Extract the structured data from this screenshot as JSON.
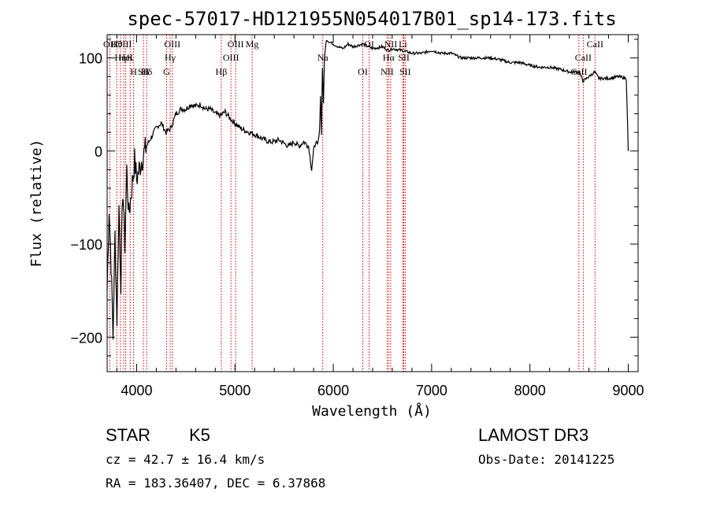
{
  "chart_data": {
    "type": "line",
    "title": "spec-57017-HD121955N054017B01_sp14-173.fits",
    "xlabel": "Wavelength (Å)",
    "ylabel": "Flux (relative)",
    "xlim": [
      3700,
      9100
    ],
    "ylim": [
      -237,
      125
    ],
    "xticks": [
      4000,
      5000,
      6000,
      7000,
      8000,
      9000
    ],
    "xtick_labels": [
      "4000",
      "5000",
      "6000",
      "7000",
      "8000",
      "9000"
    ],
    "yticks": [
      -200,
      -100,
      0,
      100
    ],
    "ytick_labels": [
      "−200",
      "−100",
      "0",
      "100"
    ],
    "grid": false,
    "series": [
      {
        "x": [
          3700,
          3720,
          3740,
          3760,
          3780,
          3800,
          3820,
          3840,
          3860,
          3880,
          3900,
          3920,
          3950,
          3980,
          4000,
          4050,
          4100,
          4150,
          4200,
          4250,
          4300,
          4350,
          4400,
          4450,
          4500,
          4550,
          4600,
          4650,
          4700,
          4750,
          4800,
          4850,
          4900,
          4950,
          5000,
          5050,
          5100,
          5150,
          5200,
          5250,
          5300,
          5350,
          5400,
          5450,
          5500,
          5550,
          5600,
          5650,
          5700,
          5750,
          5780,
          5800,
          5820,
          5840,
          5860,
          5870,
          5880,
          5890,
          5900,
          5910,
          5930,
          5950,
          6000,
          6050,
          6100,
          6150,
          6200,
          6300,
          6400,
          6500,
          6560,
          6600,
          6700,
          6800,
          6900,
          7000,
          7100,
          7200,
          7300,
          7400,
          7500,
          7600,
          7700,
          7800,
          7900,
          8000,
          8100,
          8200,
          8300,
          8400,
          8500,
          8540,
          8600,
          8660,
          8700,
          8800,
          8900,
          8980,
          9000
        ],
        "y": [
          -150,
          -60,
          -120,
          -200,
          -90,
          -180,
          -60,
          -140,
          -40,
          -100,
          -20,
          -70,
          -40,
          -10,
          -30,
          -10,
          5,
          15,
          25,
          30,
          20,
          25,
          40,
          45,
          45,
          50,
          48,
          50,
          45,
          45,
          40,
          38,
          42,
          35,
          30,
          25,
          22,
          20,
          18,
          15,
          12,
          10,
          10,
          12,
          8,
          5,
          10,
          5,
          10,
          5,
          -20,
          0,
          10,
          5,
          20,
          60,
          20,
          90,
          50,
          100,
          120,
          118,
          115,
          112,
          110,
          115,
          112,
          115,
          110,
          112,
          108,
          110,
          108,
          105,
          105,
          108,
          105,
          105,
          100,
          100,
          100,
          100,
          98,
          95,
          95,
          92,
          90,
          90,
          88,
          85,
          85,
          75,
          80,
          85,
          78,
          78,
          80,
          78,
          0
        ]
      }
    ],
    "lines": [
      {
        "name": "Hθ",
        "x": 3798
      },
      {
        "name": "K",
        "x": 3934
      },
      {
        "name": "Hδ",
        "x": 4102
      },
      {
        "name": "OII",
        "x": 3727
      },
      {
        "name": "HeI",
        "x": 3889
      },
      {
        "name": "SII",
        "x": 4070
      },
      {
        "name": "OIII",
        "x": 3869
      },
      {
        "name": "Hη",
        "x": 3835
      },
      {
        "name": "H",
        "x": 3969
      },
      {
        "name": "OIII",
        "x": 4363
      },
      {
        "name": "Hγ",
        "x": 4341
      },
      {
        "name": "G",
        "x": 4304
      },
      {
        "name": "OIII",
        "x": 5007
      },
      {
        "name": "OIII",
        "x": 4959
      },
      {
        "name": "Hβ",
        "x": 4861
      },
      {
        "name": "Mg",
        "x": 5175
      },
      {
        "name": "Na",
        "x": 5893
      },
      {
        "name": "OI",
        "x": 6300
      },
      {
        "name": "OI",
        "x": 6364
      },
      {
        "name": "Hα",
        "x": 6563
      },
      {
        "name": "NII",
        "x": 6548
      },
      {
        "name": "NII",
        "x": 6584
      },
      {
        "name": "SII",
        "x": 6717
      },
      {
        "name": "SII",
        "x": 6731
      },
      {
        "name": "Li",
        "x": 6708
      },
      {
        "name": "CaII",
        "x": 8542
      },
      {
        "name": "CaII",
        "x": 8498
      },
      {
        "name": "CaII",
        "x": 8662
      }
    ]
  },
  "info": {
    "object_class": "STAR",
    "subclass": "K5",
    "survey": "LAMOST DR3",
    "redshift": "cz = 42.7 ± 16.4 km/s",
    "obs_date": "Obs-Date: 20141225",
    "coords": "RA = 183.36407, DEC =    6.37868"
  }
}
